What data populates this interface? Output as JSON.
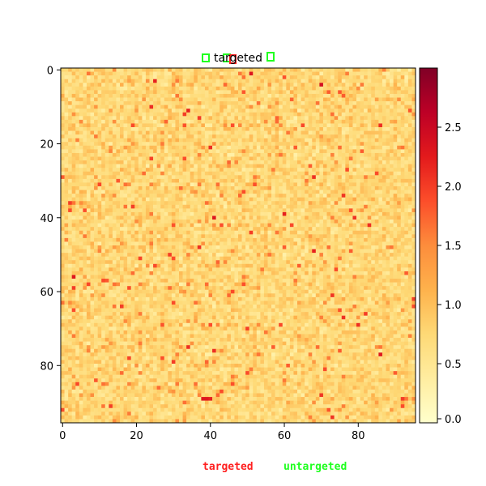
{
  "chart_data": {
    "type": "heatmap",
    "title": "targeted",
    "grid_size": [
      96,
      96
    ],
    "x_ticks": [
      0,
      20,
      40,
      60,
      80
    ],
    "y_ticks": [
      0,
      20,
      40,
      60,
      80
    ],
    "colorbar": {
      "min": 0.0,
      "max": 3.0,
      "ticks": [
        "0.0",
        "0.5",
        "1.0",
        "1.5",
        "2.0",
        "2.5"
      ],
      "colormap": "YlOrRd"
    },
    "value_distribution": {
      "baseline_mean": 0.75,
      "baseline_spread": 0.35
    },
    "hot_cells": [
      {
        "row": 3,
        "col": 25,
        "value": 2.2
      },
      {
        "row": 4,
        "col": 70,
        "value": 2.4
      },
      {
        "row": 10,
        "col": 24,
        "value": 2.1
      },
      {
        "row": 11,
        "col": 34,
        "value": 2.2
      },
      {
        "row": 12,
        "col": 33,
        "value": 2.0
      },
      {
        "row": 29,
        "col": 68,
        "value": 2.1
      },
      {
        "row": 28,
        "col": 85,
        "value": 1.9
      },
      {
        "row": 39,
        "col": 60,
        "value": 2.2
      },
      {
        "row": 40,
        "col": 41,
        "value": 2.3
      },
      {
        "row": 44,
        "col": 51,
        "value": 2.0
      },
      {
        "row": 49,
        "col": 68,
        "value": 2.2
      },
      {
        "row": 50,
        "col": 29,
        "value": 2.0
      },
      {
        "row": 53,
        "col": 25,
        "value": 1.9
      },
      {
        "row": 56,
        "col": 3,
        "value": 2.3
      },
      {
        "row": 57,
        "col": 11,
        "value": 1.9
      },
      {
        "row": 59,
        "col": 18,
        "value": 1.9
      },
      {
        "row": 59,
        "col": 3,
        "value": 2.0
      },
      {
        "row": 63,
        "col": 30,
        "value": 1.9
      },
      {
        "row": 66,
        "col": 82,
        "value": 2.0
      },
      {
        "row": 70,
        "col": 50,
        "value": 2.0
      },
      {
        "row": 76,
        "col": 41,
        "value": 2.1
      },
      {
        "row": 77,
        "col": 86,
        "value": 2.3
      },
      {
        "row": 79,
        "col": 30,
        "value": 2.0
      },
      {
        "row": 82,
        "col": 50,
        "value": 1.9
      },
      {
        "row": 89,
        "col": 38,
        "value": 2.3
      },
      {
        "row": 89,
        "col": 39,
        "value": 2.3
      },
      {
        "row": 89,
        "col": 40,
        "value": 2.2
      }
    ]
  },
  "legend": {
    "targeted": {
      "label": "targeted",
      "color": "#ff2020"
    },
    "untargeted": {
      "label": "untargeted",
      "color": "#20ff20"
    }
  }
}
